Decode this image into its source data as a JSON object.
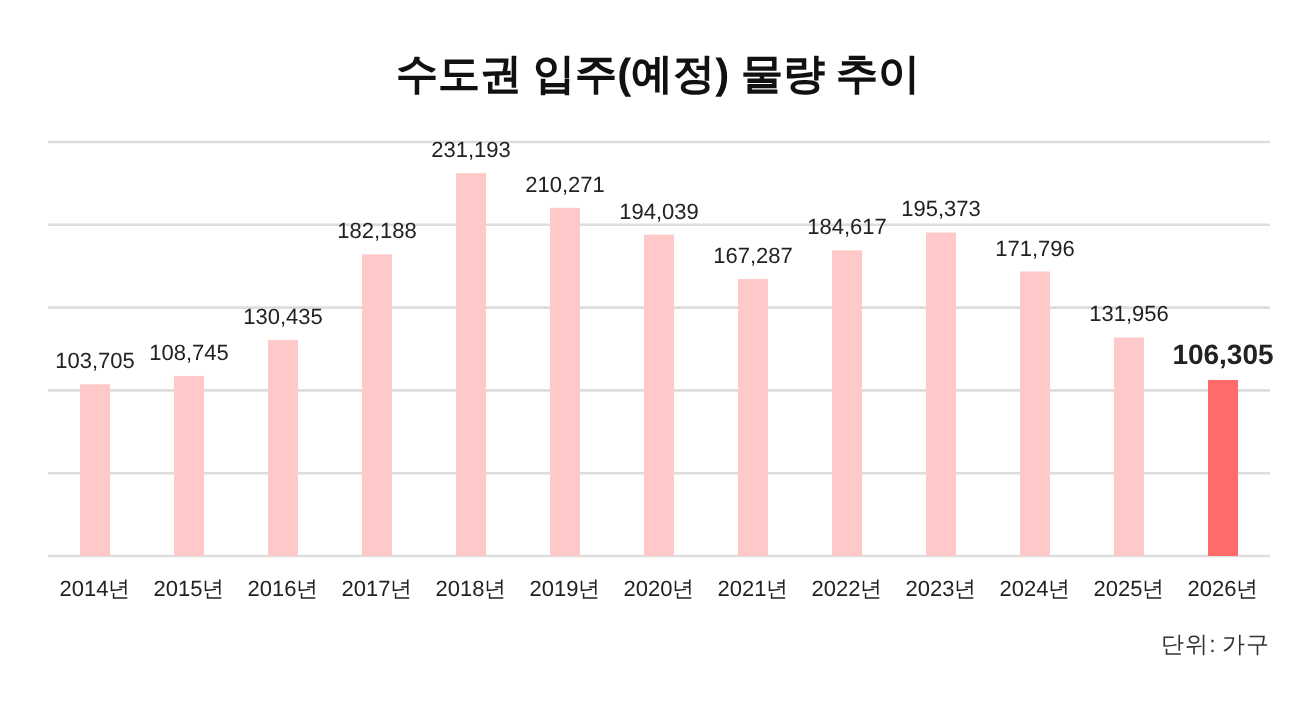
{
  "chart_data": {
    "type": "bar",
    "title": "수도권 입주(예정) 물량 추이",
    "categories": [
      "2014년",
      "2015년",
      "2016년",
      "2017년",
      "2018년",
      "2019년",
      "2020년",
      "2021년",
      "2022년",
      "2023년",
      "2024년",
      "2025년",
      "2026년"
    ],
    "values": [
      103705,
      108745,
      130435,
      182188,
      231193,
      210271,
      194039,
      167287,
      184617,
      195373,
      171796,
      131956,
      106305
    ],
    "colors": [
      "#ffc9c9",
      "#ffc9c9",
      "#ffc9c9",
      "#ffc9c9",
      "#ffc9c9",
      "#ffc9c9",
      "#ffc9c9",
      "#ffc9c9",
      "#ffc9c9",
      "#ffc9c9",
      "#ffc9c9",
      "#ffc9c9",
      "#ff6b6b"
    ],
    "ylim": [
      0,
      250000
    ],
    "yticks": [
      {
        "value": 0,
        "label": null
      },
      {
        "value": 50000,
        "label": null
      },
      {
        "value": 100000,
        "label": null
      },
      {
        "value": 150000,
        "label": null
      },
      {
        "value": 200000,
        "label": null
      },
      {
        "value": 250000,
        "label": null
      }
    ],
    "value_labels": [
      "103,705",
      "108,745",
      "130,435",
      "182,188",
      "231,193",
      "210,271",
      "194,039",
      "167,287",
      "184,617",
      "195,373",
      "171,796",
      "131,956",
      "106,305"
    ],
    "tick_labels": "x",
    "grid": "y",
    "annotations": [
      "단위: 가구"
    ]
  }
}
